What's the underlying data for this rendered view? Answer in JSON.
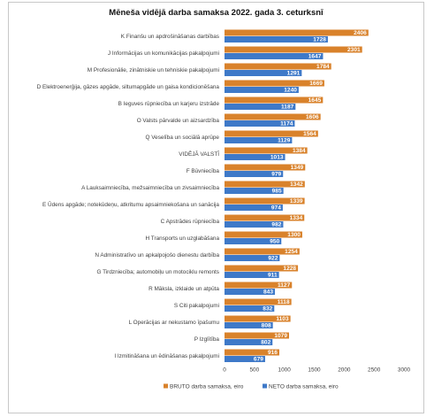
{
  "chart_data": {
    "type": "bar",
    "orientation": "horizontal",
    "title": "Mēneša vidējā darba samaksa 2022. gada 3. ceturksnī",
    "categories": [
      "K Finanšu un apdrošināšanas darbības",
      "J Informācijas un komunikācijas pakalpojumi",
      "M Profesionālie, zinātniskie un tehniskie pakalpojumi",
      "D Elektroenerģija, gāzes apgāde, siltumapgāde un gaisa kondicionēšana",
      "B Ieguves rūpniecība un karjeru izstrāde",
      "O Valsts pārvalde un aizsardzība",
      "Q Veselība un sociālā aprūpe",
      "VIDĒJĀ VALSTĪ",
      "F Būvniecība",
      "A Lauksaimniecība, mežsaimniecība un zivsaimniecība",
      "E Ūdens apgāde; notekūdeņu, atkritumu apsaimniekošana un sanācija",
      "C Apstrādes rūpniecība",
      "H Transports un uzglabāšana",
      "N Administratīvo un apkalpojošo dienestu darbība",
      "G Tirdzniecība; automobiļu un motociklu remonts",
      "R Māksla, izklaide un atpūta",
      "S Citi pakalpojumi",
      "L Operācijas ar nekustamo īpašumu",
      "P Izglītība",
      "I Izmitināšana un ēdināšanas pakalpojumi"
    ],
    "series": [
      {
        "name": "BRUTO darba samaksa, eiro",
        "color": "#d9822b",
        "values": [
          2406,
          2301,
          1784,
          1669,
          1645,
          1606,
          1564,
          1384,
          1349,
          1342,
          1339,
          1334,
          1300,
          1254,
          1228,
          1127,
          1118,
          1103,
          1079,
          916
        ]
      },
      {
        "name": "NETO darba samaksa, eiro",
        "color": "#3e79c8",
        "values": [
          1728,
          1647,
          1291,
          1240,
          1187,
          1174,
          1129,
          1013,
          979,
          985,
          974,
          982,
          950,
          922,
          911,
          843,
          832,
          808,
          802,
          679
        ]
      }
    ],
    "xlim": [
      0,
      3000
    ],
    "xticks": [
      "0",
      "500",
      "1000",
      "1500",
      "2000",
      "2500",
      "3000"
    ],
    "grid": false,
    "legend": "bottom"
  }
}
